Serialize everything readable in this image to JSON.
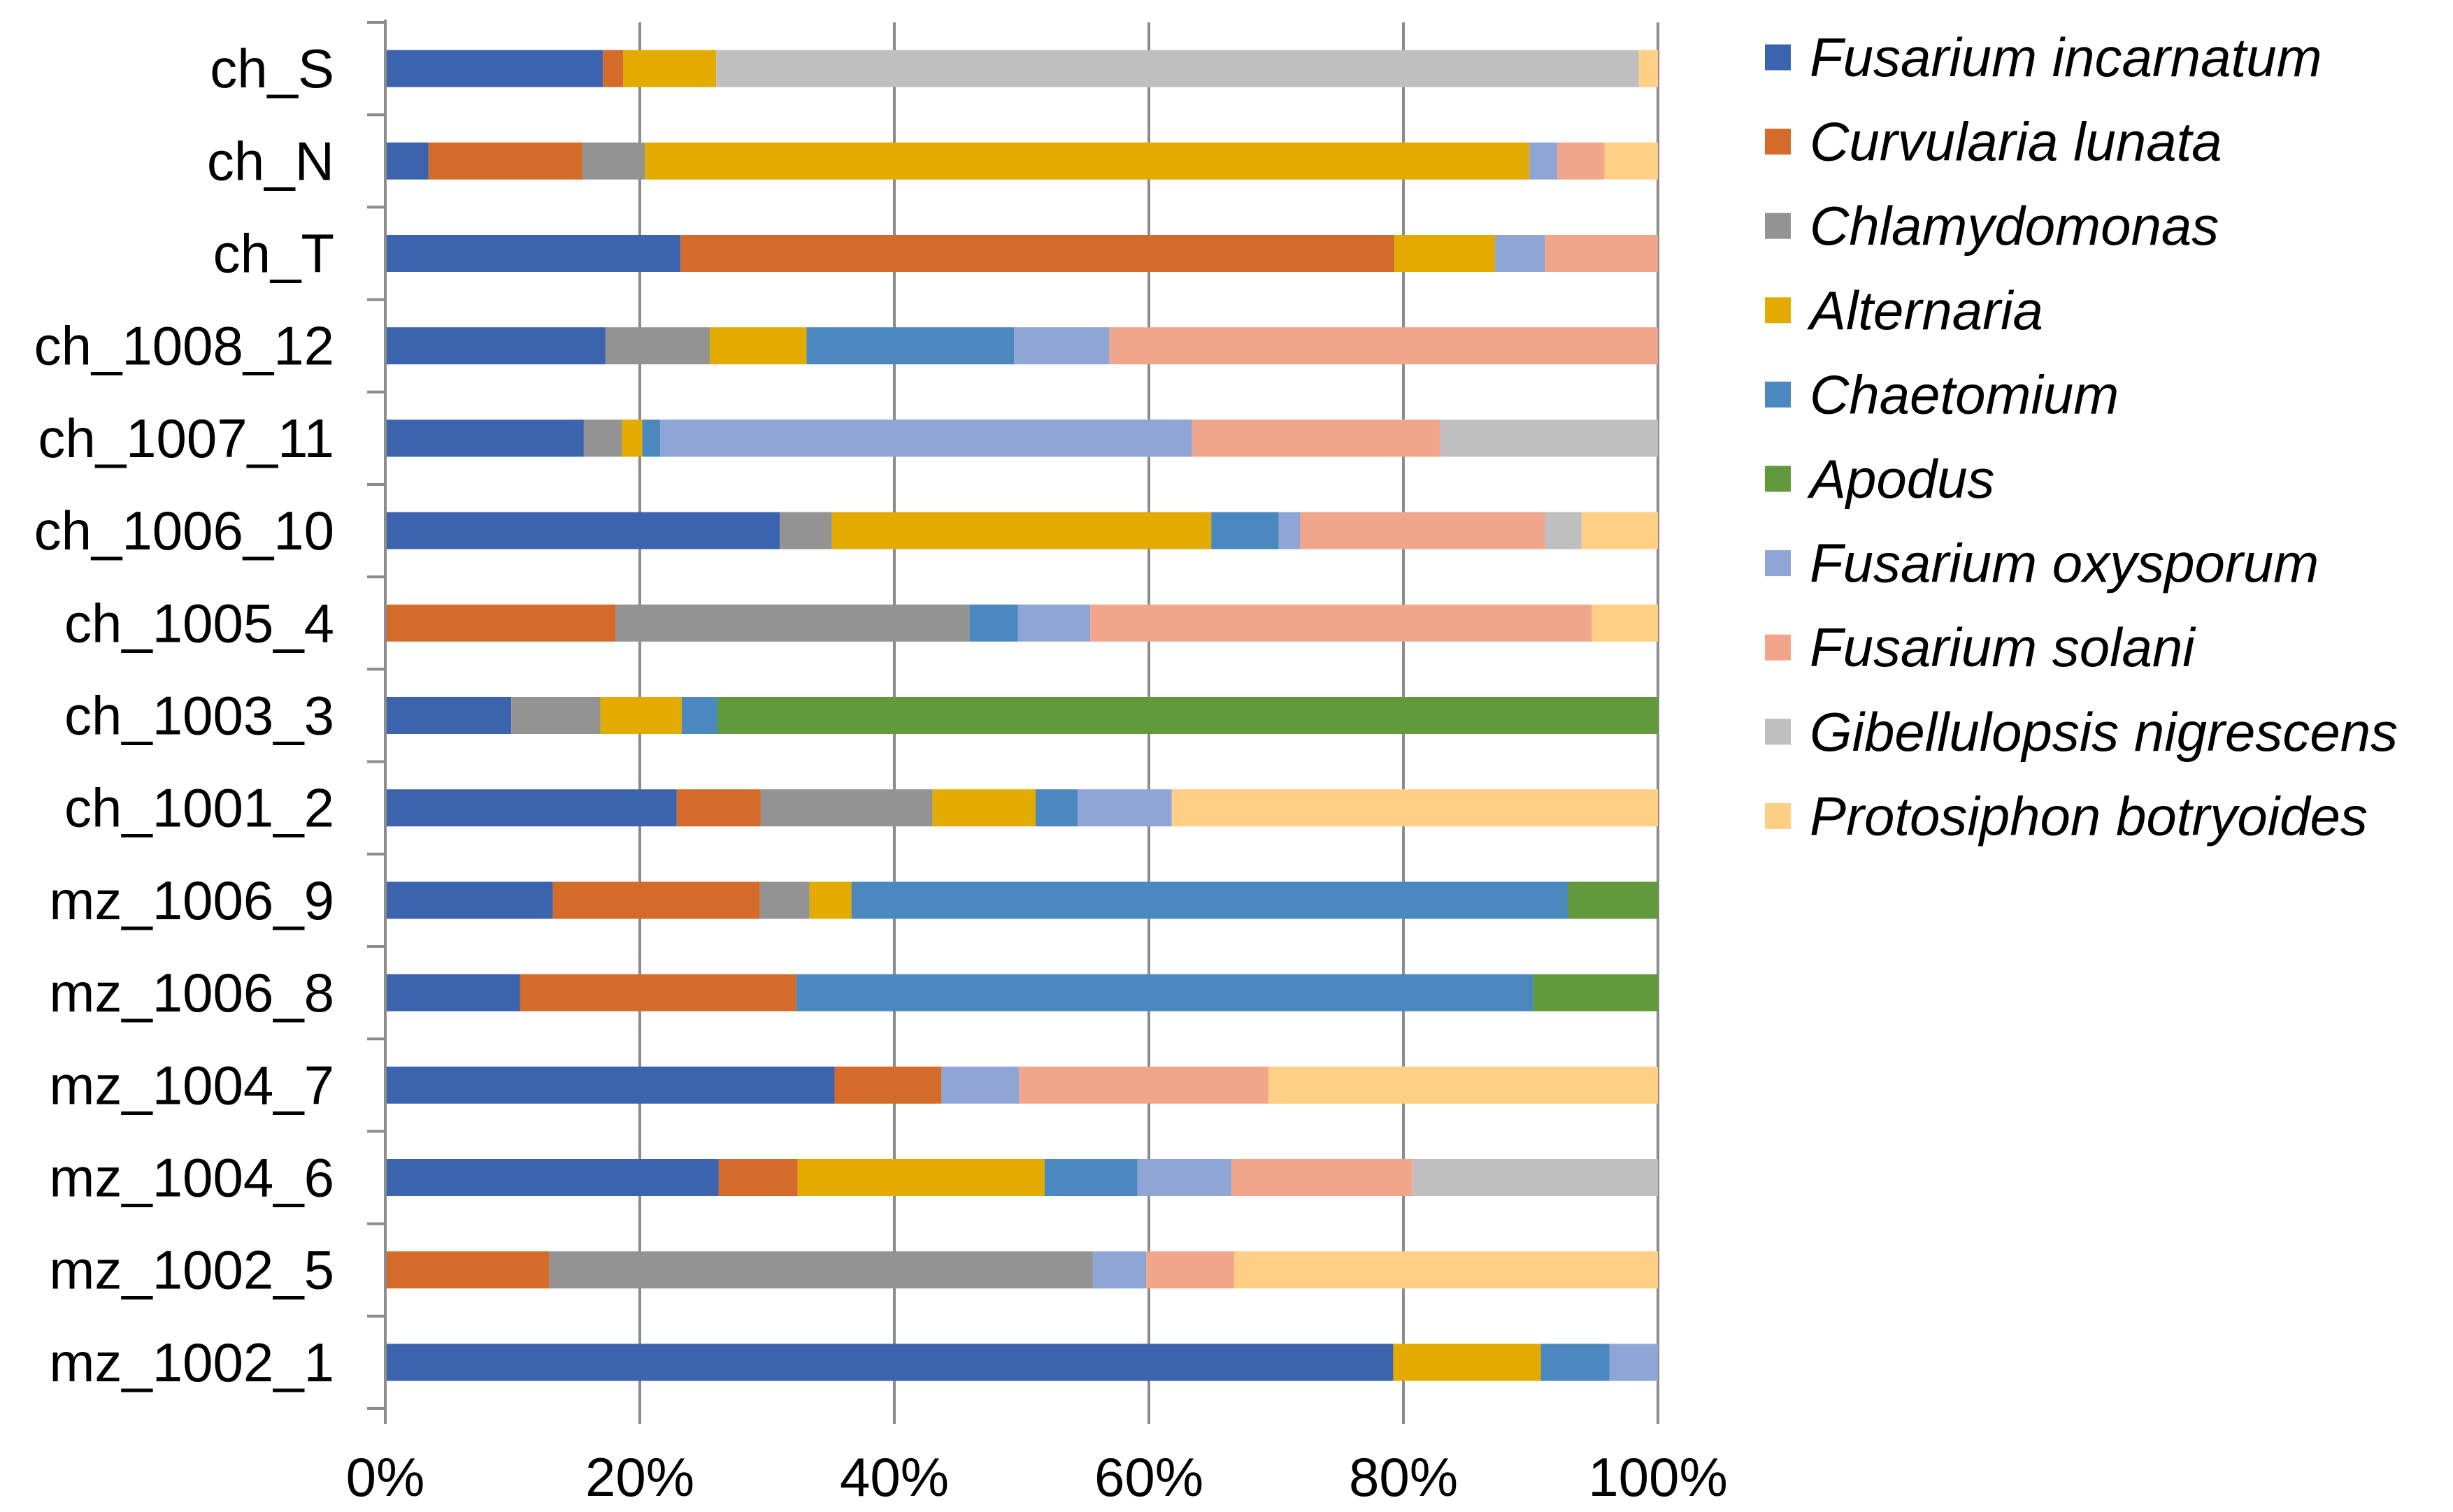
{
  "chart_data": {
    "type": "bar",
    "orientation": "horizontal",
    "stacked": "100%",
    "title": "",
    "xlabel": "",
    "ylabel": "",
    "xlim": [
      0,
      100
    ],
    "x_ticks": [
      "0%",
      "20%",
      "40%",
      "60%",
      "80%",
      "100%"
    ],
    "grid": true,
    "legend_position": "right",
    "categories": [
      "ch_S",
      "ch_N",
      "ch_T",
      "ch_1008_12",
      "ch_1007_11",
      "ch_1006_10",
      "ch_1005_4",
      "ch_1003_3",
      "ch_1001_2",
      "mz_1006_9",
      "mz_1006_8",
      "mz_1004_7",
      "mz_1004_6",
      "mz_1002_5",
      "mz_1002_1"
    ],
    "series": [
      {
        "name": "Fusarium incarnatum",
        "color": "#3c64ae",
        "values": [
          17.1,
          3.4,
          23.2,
          17.3,
          15.6,
          31.0,
          0,
          9.9,
          22.9,
          13.2,
          10.6,
          35.3,
          26.2,
          0,
          79.2
        ]
      },
      {
        "name": "Curvularia lunata",
        "color": "#d46b2b",
        "values": [
          1.6,
          12.1,
          56.1,
          0,
          0,
          0,
          18.1,
          0,
          6.6,
          16.3,
          21.7,
          8.4,
          6.2,
          12.9,
          0
        ]
      },
      {
        "name": "Chlamydomonas",
        "color": "#939393",
        "values": [
          0,
          4.9,
          0,
          8.2,
          3.0,
          4.1,
          27.8,
          7.0,
          13.5,
          3.9,
          0,
          0,
          0,
          42.7,
          0
        ]
      },
      {
        "name": "Alternaria",
        "color": "#e3ab00",
        "values": [
          7.3,
          69.5,
          7.9,
          7.6,
          1.6,
          29.8,
          0,
          6.4,
          8.1,
          3.3,
          0,
          0,
          19.4,
          0,
          11.6
        ]
      },
      {
        "name": "Chaetomium",
        "color": "#4a88bf",
        "values": [
          0,
          0,
          0,
          16.3,
          1.4,
          5.3,
          3.8,
          2.8,
          3.3,
          56.4,
          57.9,
          0,
          7.3,
          0,
          5.4
        ]
      },
      {
        "name": "Apodus",
        "color": "#63993d",
        "values": [
          0,
          0,
          0,
          0,
          0,
          0,
          0,
          73.9,
          0,
          7.1,
          9.8,
          0,
          0,
          0,
          0
        ]
      },
      {
        "name": "Fusarium oxysporum",
        "color": "#8fa5d6",
        "values": [
          0,
          2.2,
          3.9,
          7.5,
          41.8,
          1.7,
          5.7,
          0,
          7.4,
          0,
          0,
          6.1,
          7.4,
          4.2,
          3.8
        ]
      },
      {
        "name": "Fusarium solani",
        "color": "#f1a68b",
        "values": [
          0,
          3.7,
          8.9,
          43.1,
          19.5,
          19.2,
          39.4,
          0,
          0,
          0,
          0,
          19.6,
          14.2,
          6.9,
          0
        ]
      },
      {
        "name": "Gibellulopsis nigrescens",
        "color": "#bfbfbf",
        "values": [
          72.5,
          0,
          0,
          0,
          17.1,
          2.9,
          0,
          0,
          0,
          0,
          0,
          0,
          19.3,
          0,
          0
        ]
      },
      {
        "name": "Protosiphon botryoides",
        "color": "#ffcf85",
        "values": [
          1.5,
          4.2,
          0,
          0,
          0,
          6.0,
          5.2,
          0,
          38.2,
          0,
          0,
          30.6,
          0,
          33.3,
          0
        ]
      }
    ]
  }
}
